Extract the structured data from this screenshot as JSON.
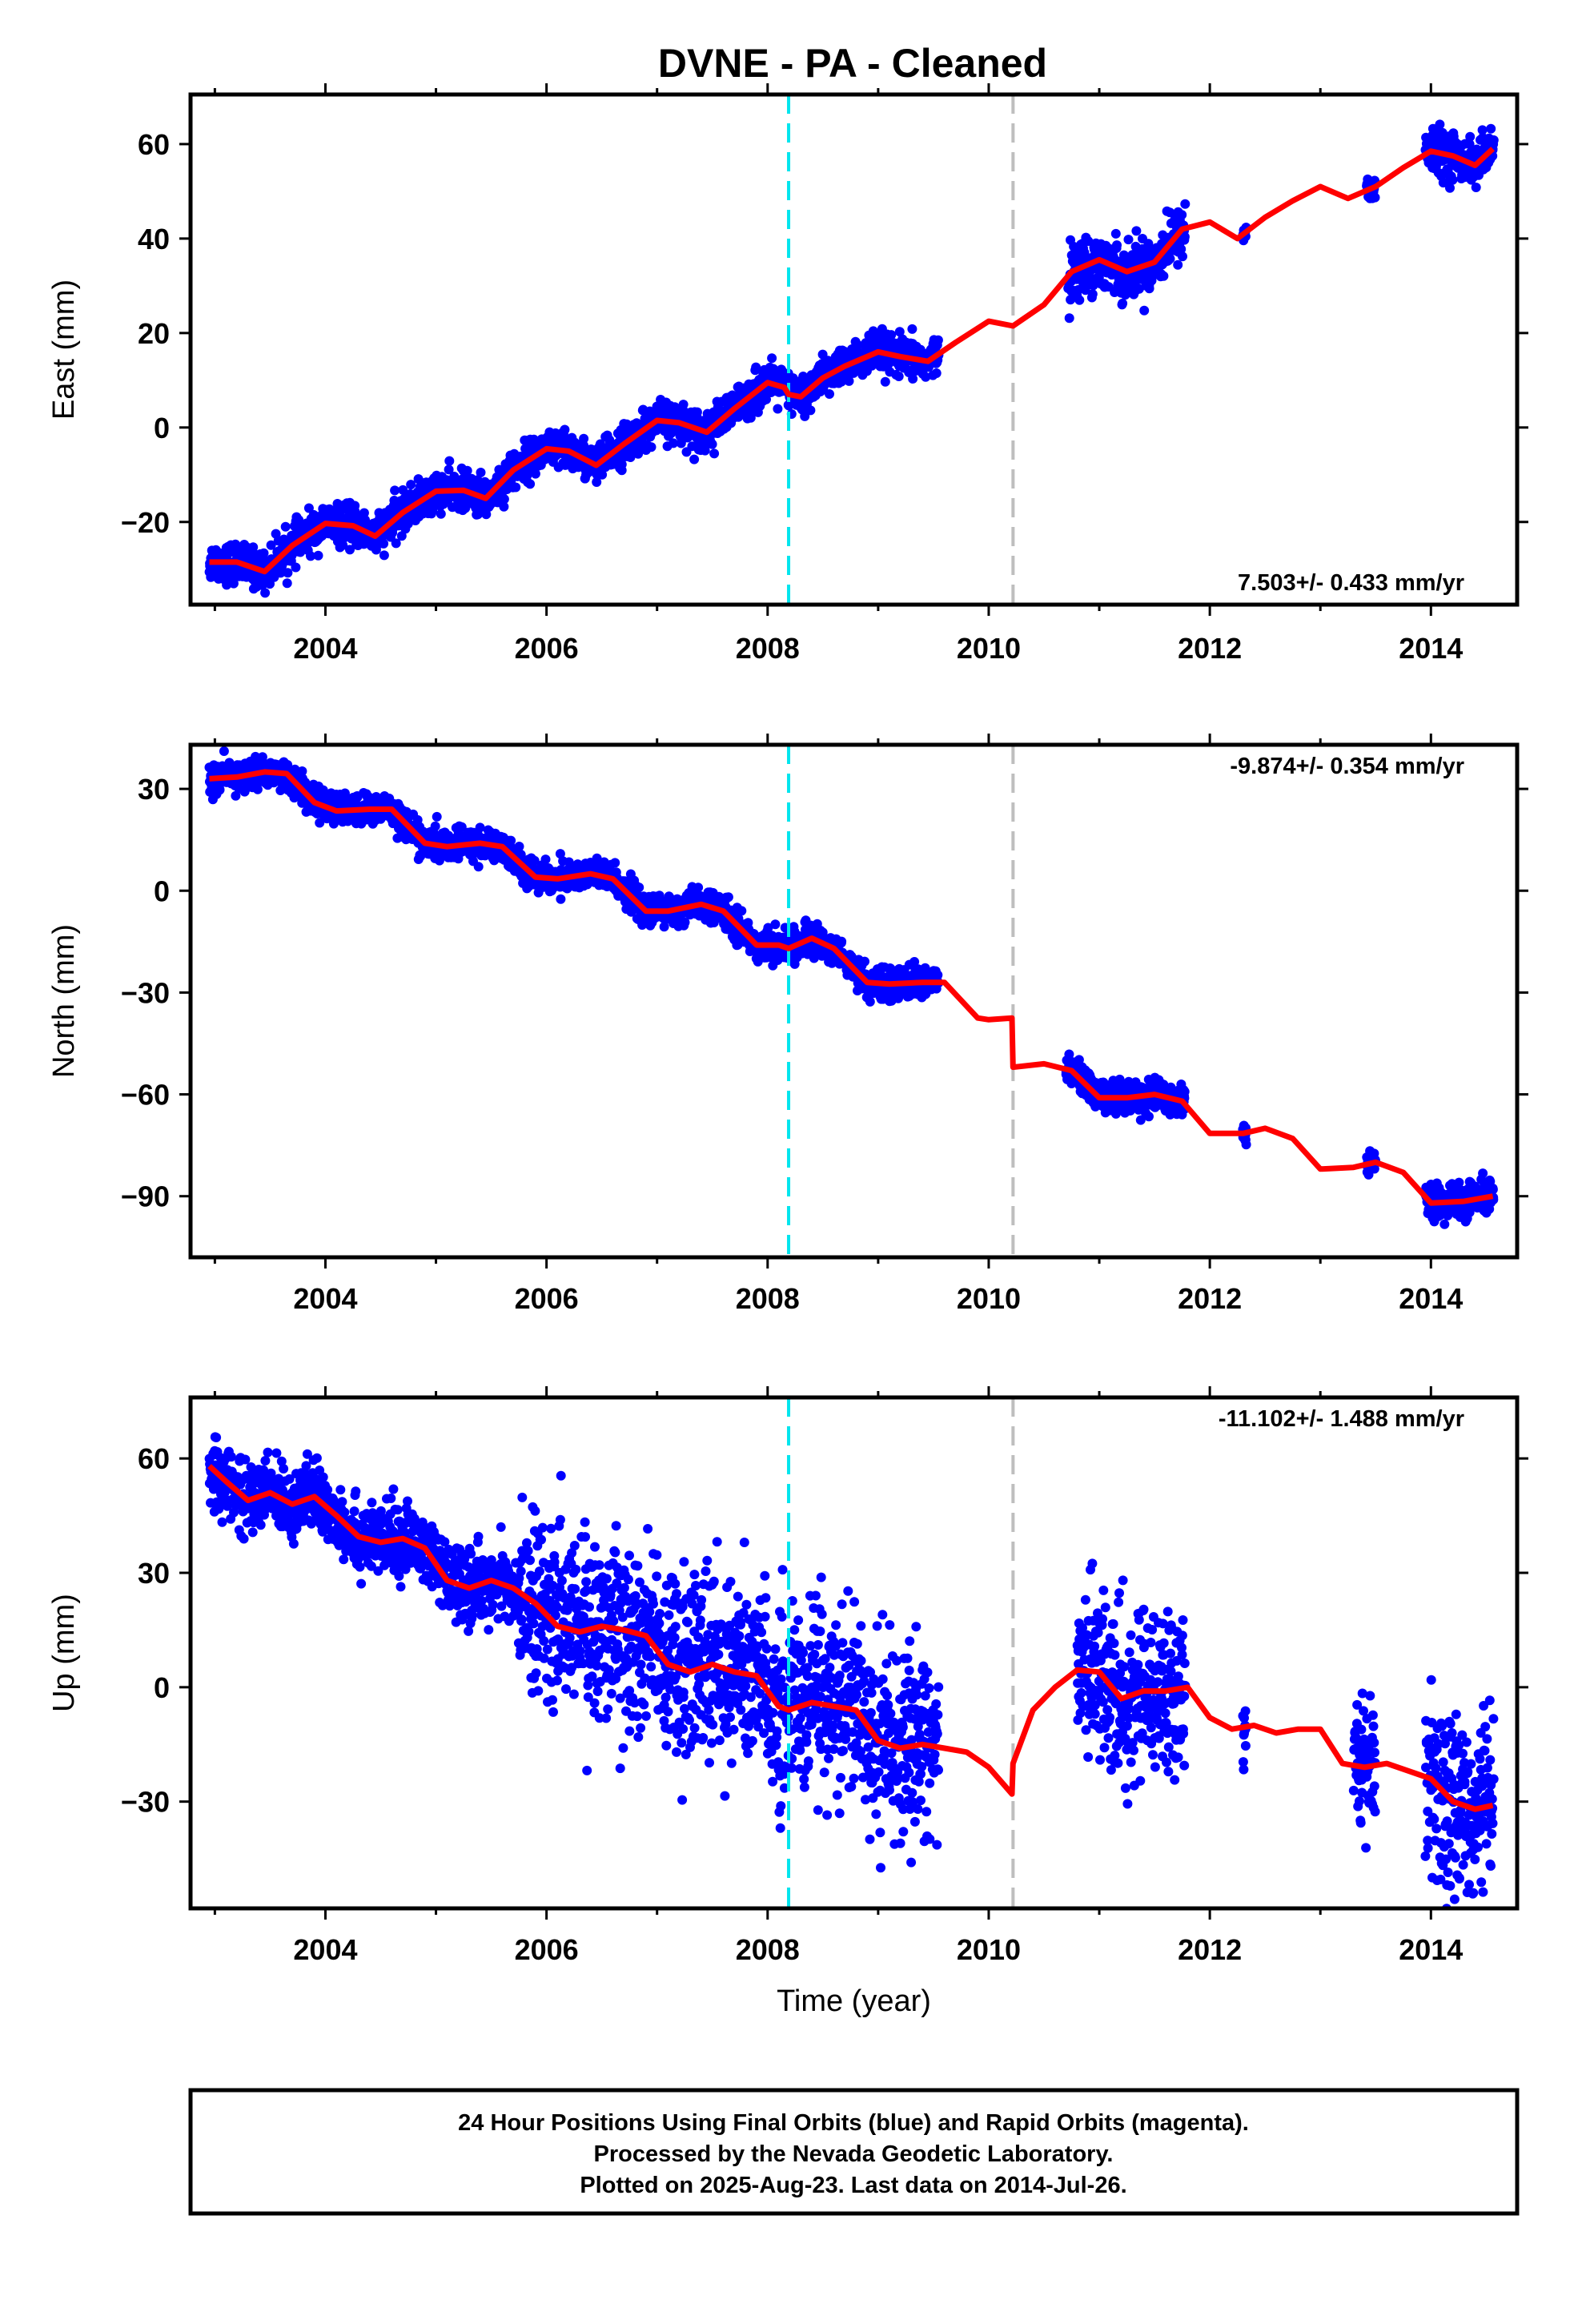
{
  "figure": {
    "title": "DVNE  - PA - Cleaned"
  },
  "colors": {
    "final_orbits": "#0000ff",
    "model": "#ff0000",
    "antenna_change": "#00e5ee",
    "equipment_change": "#bebebe",
    "frame": "#000000"
  },
  "footer": {
    "lines": [
      "24 Hour Positions Using Final Orbits (blue) and Rapid Orbits (magenta).",
      "Processed by the Nevada Geodetic Laboratory.",
      "Plotted on 2025-Aug-23. Last data on 2014-Jul-26."
    ]
  },
  "chart_data": [
    {
      "type": "scatter",
      "panel": "east",
      "title": "",
      "xlabel": "",
      "ylabel": "East (mm)",
      "xlim": [
        2002.78,
        2014.78
      ],
      "ylim": [
        -37.5,
        70.5
      ],
      "xticks": [
        2004,
        2006,
        2008,
        2010,
        2012,
        2014
      ],
      "yticks": [
        -20,
        0,
        20,
        40,
        60
      ],
      "ytick_labels": [
        "−20",
        "0",
        "20",
        "40",
        "60"
      ],
      "vlines": [
        {
          "x": 2008.19,
          "style": "dashed",
          "color": "#00e5ee"
        },
        {
          "x": 2010.22,
          "style": "dashed",
          "color": "#bebebe"
        }
      ],
      "rate_label": "7.503+/- 0.433 mm/yr",
      "rate_position": "bottom-right",
      "points_description_segments": [
        {
          "x_start": 2002.95,
          "x_end": 2009.55,
          "spread": 2.2
        },
        {
          "x_start": 2010.72,
          "x_end": 2011.75,
          "spread": 3.0
        },
        {
          "x_start": 2012.3,
          "x_end": 2012.32,
          "spread": 1.5
        },
        {
          "x_start": 2013.42,
          "x_end": 2013.5,
          "spread": 1.5
        },
        {
          "x_start": 2013.95,
          "x_end": 2014.56,
          "spread": 2.5
        }
      ],
      "series": [
        {
          "name": "",
          "kind": "model",
          "x": [
            2002.95,
            2003.2,
            2003.45,
            2003.7,
            2004.0,
            2004.25,
            2004.45,
            2004.7,
            2005.0,
            2005.25,
            2005.45,
            2005.7,
            2006.0,
            2006.2,
            2006.45,
            2006.7,
            2007.0,
            2007.2,
            2007.45,
            2007.7,
            2008.0,
            2008.15,
            2008.19,
            2008.3,
            2008.5,
            2008.7,
            2009.0,
            2009.2,
            2009.45,
            2009.7,
            2010.0,
            2010.22,
            2010.5,
            2010.75,
            2011.0,
            2011.25,
            2011.5,
            2011.75,
            2012.0,
            2012.25,
            2012.5,
            2012.75,
            2013.0,
            2013.25,
            2013.5,
            2013.75,
            2014.0,
            2014.2,
            2014.4,
            2014.56
          ],
          "y": [
            -28.5,
            -28.5,
            -30.5,
            -25.0,
            -20.3,
            -20.8,
            -23.0,
            -18.0,
            -13.5,
            -13.3,
            -15.0,
            -9.0,
            -4.5,
            -5.0,
            -8.0,
            -3.5,
            1.5,
            1.0,
            -1.0,
            4.0,
            9.5,
            8.5,
            7.0,
            6.5,
            10.5,
            13.0,
            16.0,
            15.0,
            14.0,
            18.0,
            22.5,
            21.5,
            26.0,
            33.0,
            35.5,
            33.0,
            35.0,
            42.0,
            43.5,
            40.0,
            44.5,
            48.0,
            51.0,
            48.5,
            51.0,
            55.0,
            58.5,
            57.5,
            55.5,
            59.0
          ]
        }
      ]
    },
    {
      "type": "scatter",
      "panel": "north",
      "title": "",
      "xlabel": "",
      "ylabel": "North (mm)",
      "xlim": [
        2002.78,
        2014.78
      ],
      "ylim": [
        -108.0,
        43.0
      ],
      "xticks": [
        2004,
        2006,
        2008,
        2010,
        2012,
        2014
      ],
      "yticks": [
        -90,
        -60,
        -30,
        0,
        30
      ],
      "ytick_labels": [
        "−90",
        "−60",
        "−30",
        "0",
        "30"
      ],
      "vlines": [
        {
          "x": 2008.19,
          "style": "dashed",
          "color": "#00e5ee"
        },
        {
          "x": 2010.22,
          "style": "dashed",
          "color": "#bebebe"
        }
      ],
      "rate_label": "-9.874+/- 0.354 mm/yr",
      "rate_position": "top-right",
      "series": [
        {
          "name": "",
          "kind": "model",
          "x": [
            2002.95,
            2003.2,
            2003.45,
            2003.65,
            2003.9,
            2004.1,
            2004.4,
            2004.6,
            2004.9,
            2005.1,
            2005.4,
            2005.6,
            2005.9,
            2006.1,
            2006.4,
            2006.6,
            2006.9,
            2007.1,
            2007.4,
            2007.6,
            2007.9,
            2008.1,
            2008.19,
            2008.4,
            2008.6,
            2008.9,
            2009.1,
            2009.4,
            2009.6,
            2009.9,
            2010.0,
            2010.21,
            2010.22,
            2010.5,
            2010.75,
            2011.0,
            2011.25,
            2011.5,
            2011.75,
            2012.0,
            2012.3,
            2012.5,
            2012.75,
            2013.0,
            2013.3,
            2013.5,
            2013.75,
            2014.0,
            2014.3,
            2014.56
          ],
          "y": [
            33.0,
            33.5,
            35.0,
            34.5,
            26.0,
            23.5,
            24.0,
            24.0,
            14.0,
            13.0,
            14.0,
            13.0,
            4.0,
            3.5,
            5.0,
            3.5,
            -6.0,
            -6.0,
            -4.0,
            -6.0,
            -16.0,
            -16.0,
            -17.0,
            -14.0,
            -17.0,
            -27.0,
            -27.5,
            -27.0,
            -27.0,
            -37.5,
            -38.0,
            -37.5,
            -52.0,
            -51.0,
            -53.0,
            -61.0,
            -61.0,
            -60.0,
            -62.0,
            -71.5,
            -71.5,
            -70.0,
            -73.0,
            -82.0,
            -81.5,
            -80.0,
            -83.0,
            -92.0,
            -91.5,
            -90.0
          ]
        }
      ]
    },
    {
      "type": "scatter",
      "panel": "up",
      "title": "",
      "xlabel": "Time (year)",
      "ylabel": "Up (mm)",
      "xlim": [
        2002.78,
        2014.78
      ],
      "ylim": [
        -58.0,
        76.0
      ],
      "xticks": [
        2004,
        2006,
        2008,
        2010,
        2012,
        2014
      ],
      "yticks": [
        -30,
        0,
        30,
        60
      ],
      "ytick_labels": [
        "−30",
        "0",
        "30",
        "60"
      ],
      "vlines": [
        {
          "x": 2008.19,
          "style": "dashed",
          "color": "#00e5ee"
        },
        {
          "x": 2010.22,
          "style": "dashed",
          "color": "#bebebe"
        }
      ],
      "rate_label": "-11.102+/- 1.488 mm/yr",
      "rate_position": "top-right",
      "series": [
        {
          "name": "",
          "kind": "model",
          "x": [
            2002.95,
            2003.1,
            2003.3,
            2003.5,
            2003.7,
            2003.9,
            2004.1,
            2004.3,
            2004.5,
            2004.7,
            2004.9,
            2005.1,
            2005.3,
            2005.5,
            2005.7,
            2005.9,
            2006.1,
            2006.3,
            2006.5,
            2006.7,
            2006.9,
            2007.1,
            2007.3,
            2007.5,
            2007.7,
            2007.9,
            2008.1,
            2008.19,
            2008.4,
            2008.6,
            2008.8,
            2009.0,
            2009.2,
            2009.4,
            2009.6,
            2009.8,
            2010.0,
            2010.21,
            2010.22,
            2010.4,
            2010.6,
            2010.8,
            2011.0,
            2011.2,
            2011.4,
            2011.6,
            2011.8,
            2012.0,
            2012.2,
            2012.4,
            2012.6,
            2012.8,
            2013.0,
            2013.2,
            2013.4,
            2013.6,
            2013.8,
            2014.0,
            2014.2,
            2014.4,
            2014.56
          ],
          "y": [
            58.0,
            54.0,
            49.0,
            51.0,
            48.0,
            50.0,
            45.0,
            39.5,
            38.0,
            39.0,
            36.5,
            28.0,
            26.0,
            28.0,
            26.0,
            22.0,
            16.0,
            14.5,
            16.0,
            15.0,
            13.5,
            6.0,
            4.0,
            6.0,
            4.0,
            3.0,
            -5.0,
            -6.0,
            -4.0,
            -5.0,
            -6.0,
            -14.0,
            -16.0,
            -15.0,
            -16.0,
            -17.0,
            -21.0,
            -28.0,
            -20.0,
            -6.0,
            0.0,
            4.5,
            4.0,
            -3.0,
            -1.0,
            -1.0,
            0.0,
            -8.0,
            -11.0,
            -10.0,
            -12.0,
            -11.0,
            -11.0,
            -20.0,
            -21.0,
            -20.0,
            -22.0,
            -24.0,
            -30.0,
            -32.0,
            -31.0
          ]
        }
      ]
    }
  ]
}
